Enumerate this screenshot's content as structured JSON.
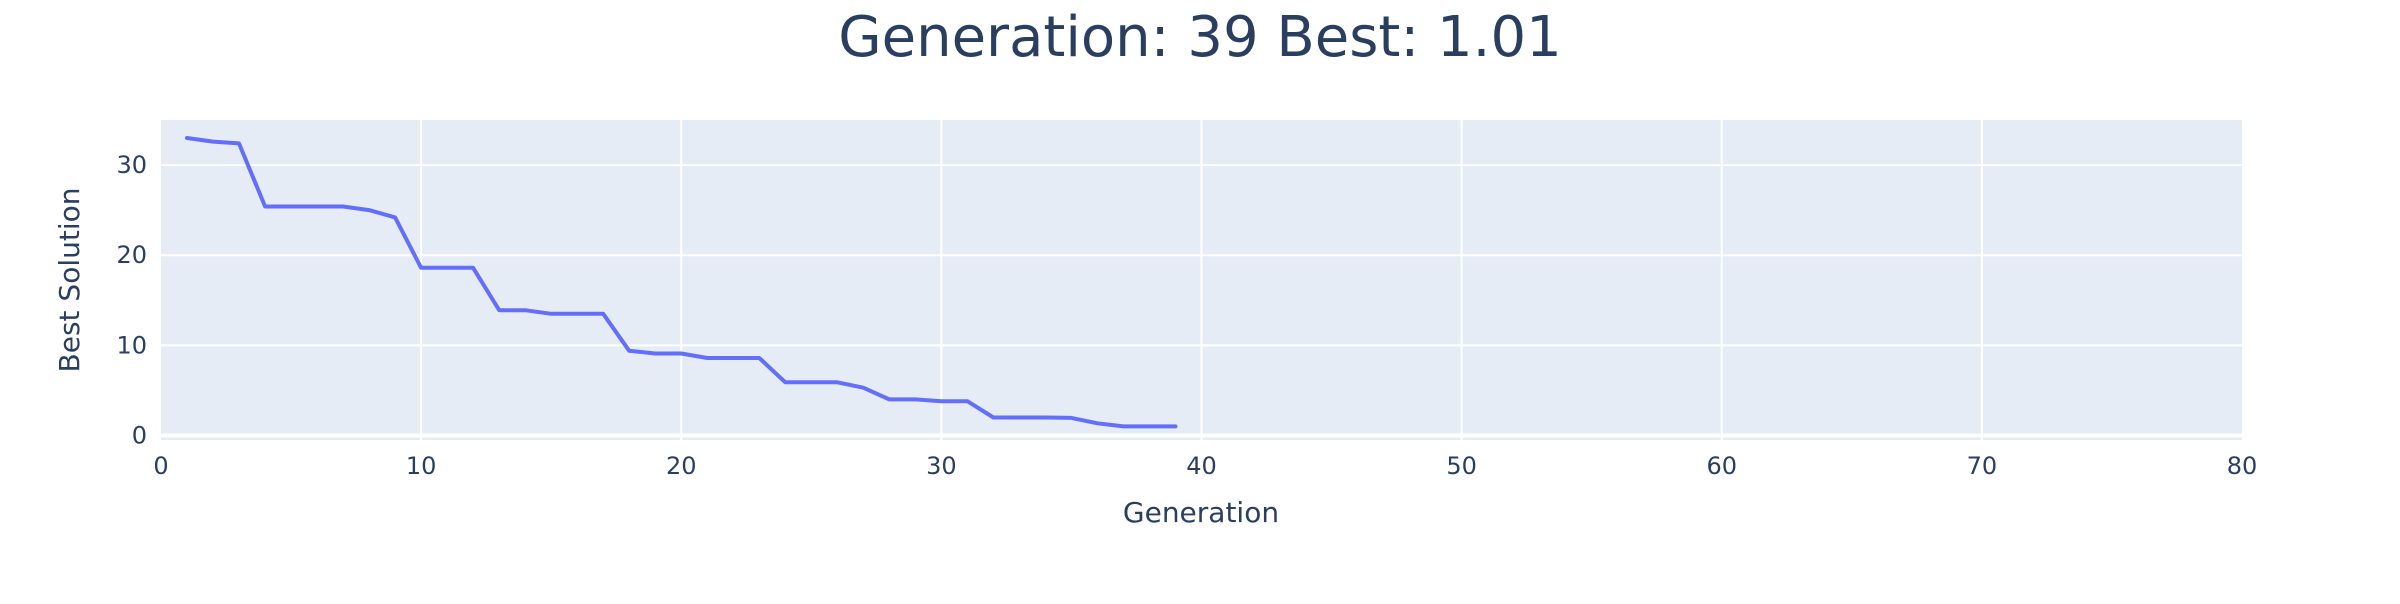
{
  "chart_data": {
    "type": "line",
    "title": "Generation: 39 Best: 1.01",
    "xlabel": "Generation",
    "ylabel": "Best Solution",
    "xlim": [
      0,
      80
    ],
    "ylim": [
      -0.5,
      35
    ],
    "x_ticks": [
      0,
      10,
      20,
      30,
      40,
      50,
      60,
      70,
      80
    ],
    "y_ticks": [
      0,
      10,
      20,
      30
    ],
    "grid": true,
    "legend": "none",
    "colors": {
      "line": "#636efa",
      "plot_bg": "#e5ecf6",
      "grid": "#ffffff",
      "text": "#2a3f5f"
    },
    "series": [
      {
        "x": [
          1,
          2,
          3,
          4,
          5,
          6,
          7,
          8,
          9,
          10,
          11,
          12,
          13,
          14,
          15,
          16,
          17,
          18,
          19,
          20,
          21,
          22,
          23,
          24,
          25,
          26,
          27,
          28,
          29,
          30,
          31,
          32,
          33,
          34,
          35,
          36,
          37,
          38,
          39
        ],
        "y": [
          33.0,
          32.6,
          32.4,
          25.4,
          25.4,
          25.4,
          25.4,
          25.0,
          24.2,
          18.6,
          18.6,
          18.6,
          13.9,
          13.9,
          13.5,
          13.5,
          13.5,
          9.4,
          9.1,
          9.1,
          8.6,
          8.6,
          8.6,
          5.9,
          5.9,
          5.9,
          5.3,
          4.0,
          4.0,
          3.8,
          3.8,
          2.0,
          2.0,
          2.0,
          1.95,
          1.35,
          1.01,
          1.01,
          1.01
        ]
      }
    ]
  }
}
